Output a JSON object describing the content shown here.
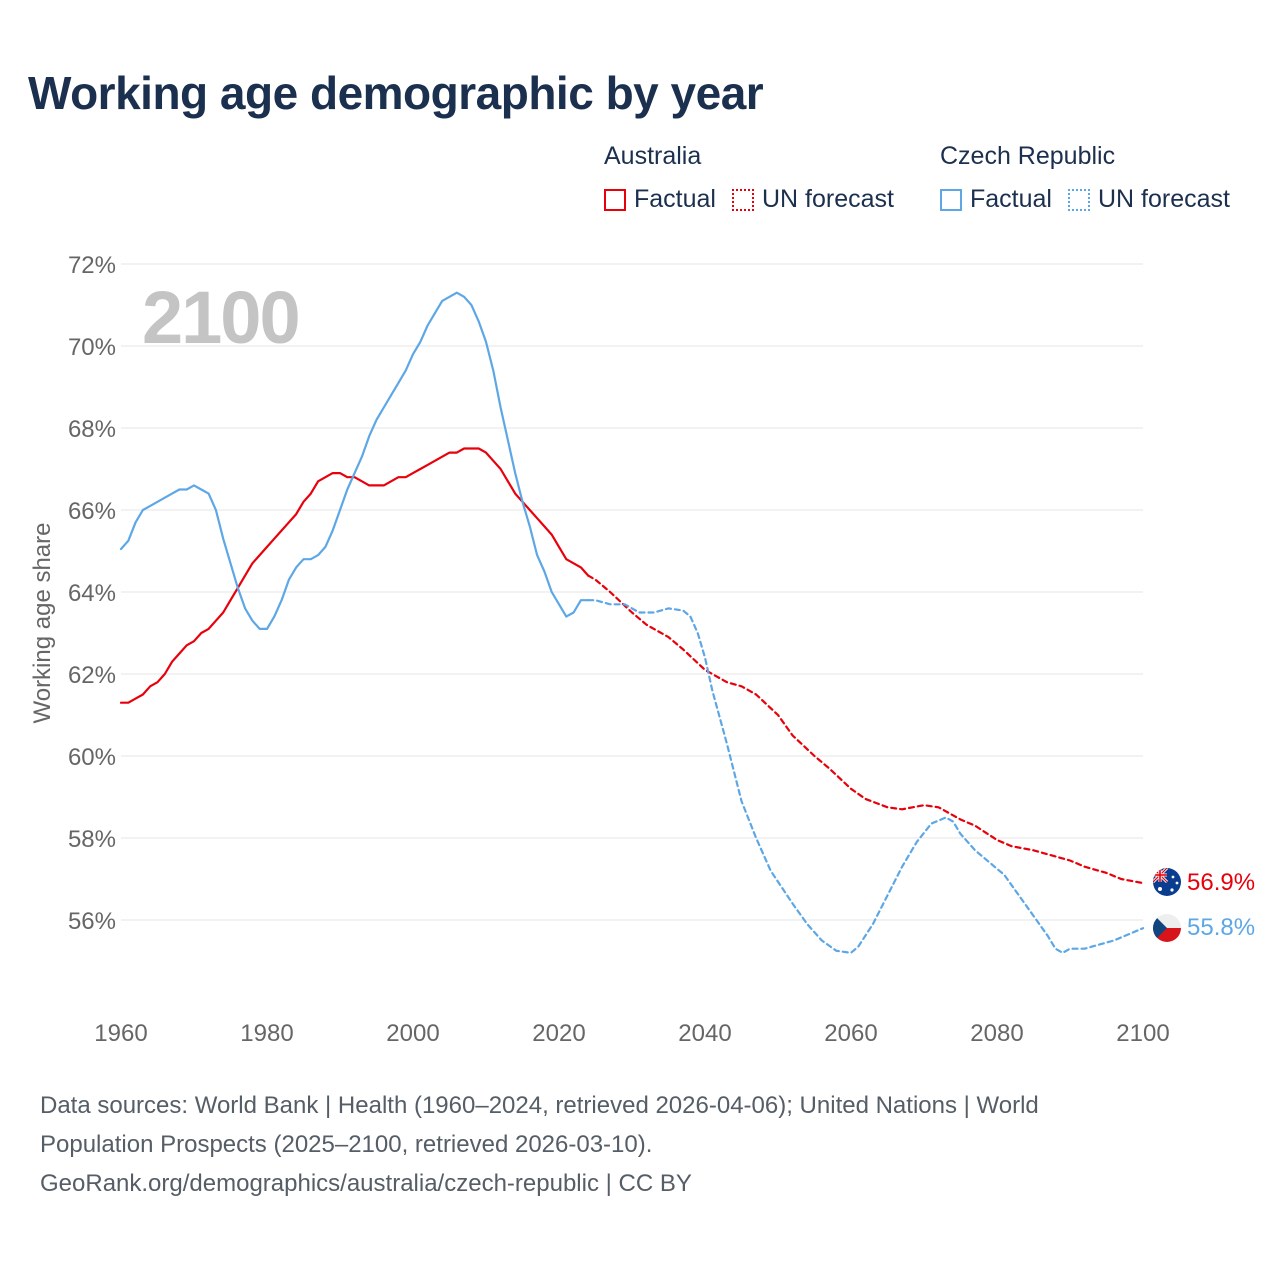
{
  "title": "Working age demographic by year",
  "legend": {
    "australia": {
      "group": "Australia",
      "factual": "Factual",
      "forecast": "UN forecast"
    },
    "czech": {
      "group": "Czech Republic",
      "factual": "Factual",
      "forecast": "UN forecast"
    }
  },
  "colors": {
    "australia": "#e8000b",
    "czech": "#5ea7e6",
    "grid": "#e6e6e6",
    "axis_text": "#666666",
    "year_label": "#c4c4c4",
    "title": "#1b2f4e"
  },
  "icons": {
    "australia_flag": "australia-flag-icon",
    "czech_flag": "czech-flag-icon"
  },
  "chart_data": {
    "type": "line",
    "title": "Working age demographic by year",
    "xlabel": "",
    "ylabel": "Working age share",
    "year_label": "2100",
    "xlim": [
      1960,
      2100
    ],
    "ylim": [
      54,
      72
    ],
    "x_ticks": [
      1960,
      1980,
      2000,
      2020,
      2040,
      2060,
      2080,
      2100
    ],
    "y_ticks": [
      56,
      58,
      60,
      62,
      64,
      66,
      68,
      70,
      72
    ],
    "y_tick_labels": [
      "56%",
      "58%",
      "60%",
      "62%",
      "64%",
      "66%",
      "68%",
      "70%",
      "72%"
    ],
    "grid": true,
    "series": [
      {
        "name": "Australia",
        "segment": "Factual",
        "style": "solid",
        "points": [
          [
            1960,
            61.3
          ],
          [
            1961,
            61.3
          ],
          [
            1962,
            61.4
          ],
          [
            1963,
            61.5
          ],
          [
            1964,
            61.7
          ],
          [
            1965,
            61.8
          ],
          [
            1966,
            62.0
          ],
          [
            1967,
            62.3
          ],
          [
            1968,
            62.5
          ],
          [
            1969,
            62.7
          ],
          [
            1970,
            62.8
          ],
          [
            1971,
            63.0
          ],
          [
            1972,
            63.1
          ],
          [
            1973,
            63.3
          ],
          [
            1974,
            63.5
          ],
          [
            1975,
            63.8
          ],
          [
            1976,
            64.1
          ],
          [
            1977,
            64.4
          ],
          [
            1978,
            64.7
          ],
          [
            1979,
            64.9
          ],
          [
            1980,
            65.1
          ],
          [
            1981,
            65.3
          ],
          [
            1982,
            65.5
          ],
          [
            1983,
            65.7
          ],
          [
            1984,
            65.9
          ],
          [
            1985,
            66.2
          ],
          [
            1986,
            66.4
          ],
          [
            1987,
            66.7
          ],
          [
            1988,
            66.8
          ],
          [
            1989,
            66.9
          ],
          [
            1990,
            66.9
          ],
          [
            1991,
            66.8
          ],
          [
            1992,
            66.8
          ],
          [
            1993,
            66.7
          ],
          [
            1994,
            66.6
          ],
          [
            1995,
            66.6
          ],
          [
            1996,
            66.6
          ],
          [
            1997,
            66.7
          ],
          [
            1998,
            66.8
          ],
          [
            1999,
            66.8
          ],
          [
            2000,
            66.9
          ],
          [
            2001,
            67.0
          ],
          [
            2002,
            67.1
          ],
          [
            2003,
            67.2
          ],
          [
            2004,
            67.3
          ],
          [
            2005,
            67.4
          ],
          [
            2006,
            67.4
          ],
          [
            2007,
            67.5
          ],
          [
            2008,
            67.5
          ],
          [
            2009,
            67.5
          ],
          [
            2010,
            67.4
          ],
          [
            2011,
            67.2
          ],
          [
            2012,
            67.0
          ],
          [
            2013,
            66.7
          ],
          [
            2014,
            66.4
          ],
          [
            2015,
            66.2
          ],
          [
            2016,
            66.0
          ],
          [
            2017,
            65.8
          ],
          [
            2018,
            65.6
          ],
          [
            2019,
            65.4
          ],
          [
            2020,
            65.1
          ],
          [
            2021,
            64.8
          ],
          [
            2022,
            64.7
          ],
          [
            2023,
            64.6
          ],
          [
            2024,
            64.4
          ]
        ]
      },
      {
        "name": "Australia",
        "segment": "UN forecast",
        "style": "dashed",
        "end_label": "56.9%",
        "points": [
          [
            2024,
            64.4
          ],
          [
            2025,
            64.3
          ],
          [
            2027,
            64.0
          ],
          [
            2030,
            63.5
          ],
          [
            2032,
            63.2
          ],
          [
            2035,
            62.9
          ],
          [
            2037,
            62.6
          ],
          [
            2040,
            62.1
          ],
          [
            2043,
            61.8
          ],
          [
            2045,
            61.7
          ],
          [
            2047,
            61.5
          ],
          [
            2050,
            61.0
          ],
          [
            2052,
            60.5
          ],
          [
            2055,
            60.0
          ],
          [
            2057,
            59.7
          ],
          [
            2060,
            59.2
          ],
          [
            2062,
            58.95
          ],
          [
            2065,
            58.75
          ],
          [
            2067,
            58.7
          ],
          [
            2070,
            58.8
          ],
          [
            2072,
            58.75
          ],
          [
            2075,
            58.45
          ],
          [
            2077,
            58.3
          ],
          [
            2080,
            57.95
          ],
          [
            2082,
            57.8
          ],
          [
            2085,
            57.7
          ],
          [
            2087,
            57.6
          ],
          [
            2090,
            57.45
          ],
          [
            2092,
            57.3
          ],
          [
            2095,
            57.15
          ],
          [
            2097,
            57.0
          ],
          [
            2100,
            56.9
          ]
        ]
      },
      {
        "name": "Czech Republic",
        "segment": "Factual",
        "style": "solid",
        "points": [
          [
            1960,
            65.05
          ],
          [
            1961,
            65.25
          ],
          [
            1962,
            65.7
          ],
          [
            1963,
            66.0
          ],
          [
            1964,
            66.1
          ],
          [
            1965,
            66.2
          ],
          [
            1966,
            66.3
          ],
          [
            1967,
            66.4
          ],
          [
            1968,
            66.5
          ],
          [
            1969,
            66.5
          ],
          [
            1970,
            66.6
          ],
          [
            1971,
            66.5
          ],
          [
            1972,
            66.4
          ],
          [
            1973,
            66.0
          ],
          [
            1974,
            65.3
          ],
          [
            1975,
            64.7
          ],
          [
            1976,
            64.1
          ],
          [
            1977,
            63.6
          ],
          [
            1978,
            63.3
          ],
          [
            1979,
            63.1
          ],
          [
            1980,
            63.1
          ],
          [
            1981,
            63.4
          ],
          [
            1982,
            63.8
          ],
          [
            1983,
            64.3
          ],
          [
            1984,
            64.6
          ],
          [
            1985,
            64.8
          ],
          [
            1986,
            64.8
          ],
          [
            1987,
            64.9
          ],
          [
            1988,
            65.1
          ],
          [
            1989,
            65.5
          ],
          [
            1990,
            66.0
          ],
          [
            1991,
            66.5
          ],
          [
            1992,
            66.9
          ],
          [
            1993,
            67.3
          ],
          [
            1994,
            67.8
          ],
          [
            1995,
            68.2
          ],
          [
            1996,
            68.5
          ],
          [
            1997,
            68.8
          ],
          [
            1998,
            69.1
          ],
          [
            1999,
            69.4
          ],
          [
            2000,
            69.8
          ],
          [
            2001,
            70.1
          ],
          [
            2002,
            70.5
          ],
          [
            2003,
            70.8
          ],
          [
            2004,
            71.1
          ],
          [
            2005,
            71.2
          ],
          [
            2006,
            71.3
          ],
          [
            2007,
            71.2
          ],
          [
            2008,
            71.0
          ],
          [
            2009,
            70.6
          ],
          [
            2010,
            70.1
          ],
          [
            2011,
            69.4
          ],
          [
            2012,
            68.5
          ],
          [
            2013,
            67.7
          ],
          [
            2014,
            66.9
          ],
          [
            2015,
            66.2
          ],
          [
            2016,
            65.6
          ],
          [
            2017,
            64.9
          ],
          [
            2018,
            64.5
          ],
          [
            2019,
            64.0
          ],
          [
            2020,
            63.7
          ],
          [
            2021,
            63.4
          ],
          [
            2022,
            63.5
          ],
          [
            2023,
            63.8
          ],
          [
            2024,
            63.8
          ]
        ]
      },
      {
        "name": "Czech Republic",
        "segment": "UN forecast",
        "style": "dashed",
        "end_label": "55.8%",
        "points": [
          [
            2024,
            63.8
          ],
          [
            2025,
            63.8
          ],
          [
            2027,
            63.7
          ],
          [
            2029,
            63.7
          ],
          [
            2031,
            63.5
          ],
          [
            2033,
            63.5
          ],
          [
            2035,
            63.6
          ],
          [
            2037,
            63.55
          ],
          [
            2038,
            63.4
          ],
          [
            2039,
            63.0
          ],
          [
            2040,
            62.4
          ],
          [
            2041,
            61.6
          ],
          [
            2043,
            60.3
          ],
          [
            2045,
            58.9
          ],
          [
            2047,
            58.0
          ],
          [
            2049,
            57.2
          ],
          [
            2052,
            56.4
          ],
          [
            2054,
            55.9
          ],
          [
            2056,
            55.5
          ],
          [
            2058,
            55.25
          ],
          [
            2060,
            55.2
          ],
          [
            2061,
            55.35
          ],
          [
            2063,
            55.9
          ],
          [
            2065,
            56.6
          ],
          [
            2067,
            57.3
          ],
          [
            2069,
            57.9
          ],
          [
            2071,
            58.35
          ],
          [
            2073,
            58.5
          ],
          [
            2074,
            58.4
          ],
          [
            2075,
            58.1
          ],
          [
            2077,
            57.7
          ],
          [
            2079,
            57.4
          ],
          [
            2081,
            57.1
          ],
          [
            2083,
            56.6
          ],
          [
            2085,
            56.1
          ],
          [
            2087,
            55.6
          ],
          [
            2088,
            55.3
          ],
          [
            2089,
            55.2
          ],
          [
            2090,
            55.3
          ],
          [
            2092,
            55.3
          ],
          [
            2094,
            55.4
          ],
          [
            2096,
            55.5
          ],
          [
            2098,
            55.65
          ],
          [
            2100,
            55.8
          ]
        ]
      }
    ]
  },
  "footer": {
    "line1": "Data sources: World Bank | Health (1960–2024, retrieved 2026-04-06); United Nations | World",
    "line2": "Population Prospects (2025–2100, retrieved 2026-03-10).",
    "line3": "GeoRank.org/demographics/australia/czech-republic | CC BY"
  }
}
